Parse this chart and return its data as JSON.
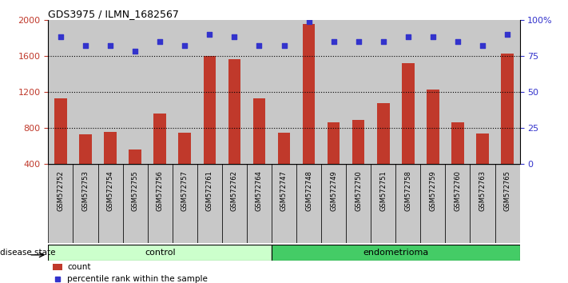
{
  "title": "GDS3975 / ILMN_1682567",
  "samples": [
    "GSM572752",
    "GSM572753",
    "GSM572754",
    "GSM572755",
    "GSM572756",
    "GSM572757",
    "GSM572761",
    "GSM572762",
    "GSM572764",
    "GSM572747",
    "GSM572748",
    "GSM572749",
    "GSM572750",
    "GSM572751",
    "GSM572758",
    "GSM572759",
    "GSM572760",
    "GSM572763",
    "GSM572765"
  ],
  "counts": [
    1130,
    730,
    760,
    560,
    960,
    750,
    1600,
    1560,
    1130,
    750,
    1950,
    860,
    890,
    1080,
    1520,
    1230,
    860,
    740,
    1630
  ],
  "percentile_ranks": [
    88,
    82,
    82,
    78,
    85,
    82,
    90,
    88,
    82,
    82,
    99,
    85,
    85,
    85,
    88,
    88,
    85,
    82,
    90
  ],
  "control_count": 9,
  "endometrioma_count": 10,
  "ylim_left": [
    400,
    2000
  ],
  "ylim_right": [
    0,
    100
  ],
  "yticks_left": [
    400,
    800,
    1200,
    1600,
    2000
  ],
  "yticks_right": [
    0,
    25,
    50,
    75,
    100
  ],
  "ytick_labels_right": [
    "0",
    "25",
    "50",
    "75",
    "100%"
  ],
  "bar_color": "#C0392B",
  "dot_color": "#3333CC",
  "col_bg": "#C8C8C8",
  "control_bg_light": "#CCFFCC",
  "control_bg": "#AAEEBB",
  "endometrioma_bg": "#44CC66",
  "disease_state_label": "disease state",
  "control_label": "control",
  "endometrioma_label": "endometrioma",
  "legend_count_label": "count",
  "legend_pct_label": "percentile rank within the sample",
  "dotted_grid_levels": [
    800,
    1200,
    1600
  ],
  "grid_line_color": "#555555"
}
